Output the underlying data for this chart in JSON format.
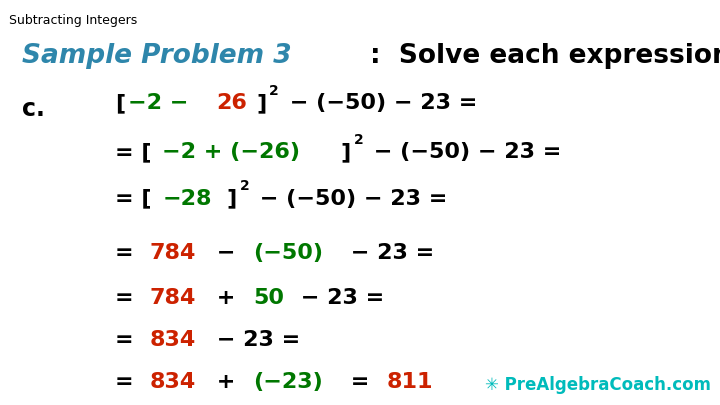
{
  "title_small": "Subtracting Integers",
  "title_main_colored": "Sample Problem 3",
  "title_main_rest": ":  Solve each expression below.",
  "label_c": "c.",
  "background_color": "#ffffff",
  "color_black": "#000000",
  "color_teal": "#2e86ab",
  "color_red": "#cc2200",
  "color_green": "#007700",
  "color_watermark": "#00bbbb",
  "small_title_fontsize": 9,
  "header_teal_fontsize": 19,
  "header_black_fontsize": 19,
  "math_fontsize": 16,
  "sup_fontsize": 10,
  "label_fontsize": 17
}
